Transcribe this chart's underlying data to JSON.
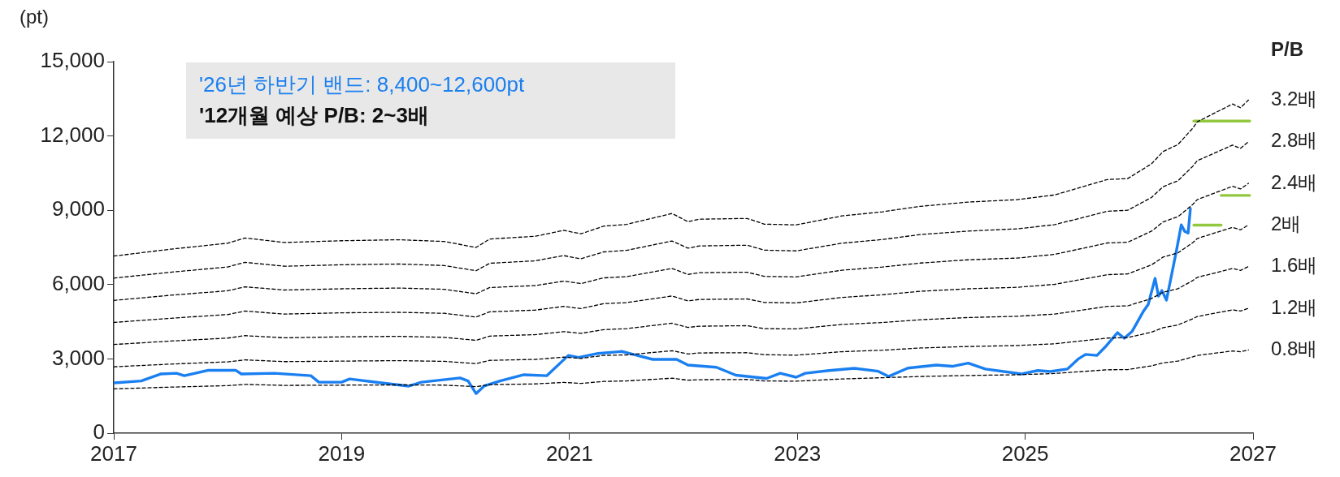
{
  "chart_data": {
    "type": "line",
    "ylabel": "(pt)",
    "legend_title": "P/B",
    "legend": false,
    "marker": "none",
    "annotations": [
      "'26년 하반기 밴드: 8,400~12,600pt",
      "'12개월 예상 P/B: 2~3배"
    ],
    "xlim": [
      2017,
      2027
    ],
    "xticks": [
      2017,
      2019,
      2021,
      2023,
      2025,
      2027
    ],
    "ylim": [
      0,
      15000
    ],
    "yticks": [
      0,
      {
        "value": 3000,
        "label": "3,000"
      },
      {
        "value": 6000,
        "label": "6,000"
      },
      {
        "value": 9000,
        "label": "9,000"
      },
      {
        "value": 12000,
        "label": "12,000"
      },
      {
        "value": 15000,
        "label": "15,000"
      }
    ],
    "x": [
      2017.0,
      2017.5,
      2018.0,
      2018.15,
      2018.5,
      2019.0,
      2019.5,
      2019.9,
      2020.18,
      2020.3,
      2020.7,
      2020.95,
      2021.1,
      2021.3,
      2021.5,
      2021.9,
      2022.04,
      2022.14,
      2022.56,
      2022.71,
      2022.99,
      2023.39,
      2023.75,
      2024.08,
      2024.5,
      2024.93,
      2025.26,
      2025.72,
      2025.9,
      2026.11,
      2026.21,
      2026.34,
      2026.47,
      2026.51,
      2026.82,
      2026.89,
      2026.96
    ],
    "series": [
      {
        "name": "3.2배",
        "color": "#000000",
        "line_style": "dashed",
        "values": [
          7150,
          7430,
          7670,
          7880,
          7700,
          7770,
          7810,
          7740,
          7500,
          7840,
          7950,
          8190,
          8050,
          8360,
          8430,
          8870,
          8540,
          8640,
          8670,
          8440,
          8410,
          8770,
          8940,
          9160,
          9330,
          9430,
          9620,
          10240,
          10280,
          10880,
          11370,
          11650,
          12310,
          12570,
          13290,
          13140,
          13450
        ]
      },
      {
        "name": "2.8배",
        "color": "#000000",
        "line_style": "dashed",
        "values": [
          6260,
          6500,
          6710,
          6900,
          6740,
          6800,
          6830,
          6770,
          6560,
          6860,
          6960,
          7170,
          7040,
          7320,
          7380,
          7760,
          7470,
          7560,
          7590,
          7390,
          7360,
          7670,
          7820,
          8020,
          8160,
          8250,
          8420,
          8960,
          9000,
          9520,
          9950,
          10190,
          10770,
          11000,
          11630,
          11500,
          11770
        ]
      },
      {
        "name": "2.4배",
        "color": "#000000",
        "line_style": "dashed",
        "values": [
          5360,
          5570,
          5750,
          5910,
          5780,
          5830,
          5860,
          5810,
          5630,
          5880,
          5960,
          6140,
          6040,
          6270,
          6320,
          6650,
          6410,
          6480,
          6500,
          6330,
          6310,
          6580,
          6710,
          6870,
          7000,
          7070,
          7220,
          7680,
          7710,
          8160,
          8530,
          8740,
          9230,
          9430,
          9970,
          9860,
          10090
        ]
      },
      {
        "name": "2배",
        "color": "#000000",
        "line_style": "dashed",
        "values": [
          4470,
          4640,
          4790,
          4930,
          4810,
          4860,
          4880,
          4840,
          4690,
          4900,
          4970,
          5120,
          5030,
          5230,
          5270,
          5540,
          5340,
          5400,
          5420,
          5280,
          5260,
          5480,
          5590,
          5730,
          5830,
          5890,
          6010,
          6400,
          6430,
          6800,
          7110,
          7280,
          7690,
          7860,
          8310,
          8210,
          8410
        ]
      },
      {
        "name": "1.6배",
        "color": "#000000",
        "line_style": "dashed",
        "values": [
          3580,
          3720,
          3840,
          3940,
          3850,
          3890,
          3910,
          3870,
          3750,
          3920,
          3980,
          4100,
          4030,
          4180,
          4220,
          4440,
          4270,
          4320,
          4340,
          4220,
          4210,
          4390,
          4470,
          4580,
          4670,
          4720,
          4810,
          5120,
          5140,
          5440,
          5690,
          5830,
          6160,
          6290,
          6650,
          6570,
          6730
        ]
      },
      {
        "name": "1.2배",
        "color": "#000000",
        "line_style": "dashed",
        "values": [
          2680,
          2790,
          2880,
          2960,
          2890,
          2910,
          2930,
          2900,
          2810,
          2940,
          2980,
          3070,
          3020,
          3140,
          3160,
          3330,
          3200,
          3240,
          3250,
          3170,
          3150,
          3290,
          3350,
          3440,
          3500,
          3540,
          3610,
          3840,
          3860,
          4080,
          4260,
          4370,
          4620,
          4710,
          4980,
          4930,
          5040
        ]
      },
      {
        "name": "0.8배",
        "color": "#000000",
        "line_style": "dashed",
        "values": [
          1790,
          1860,
          1920,
          1970,
          1930,
          1940,
          1950,
          1940,
          1880,
          1960,
          1990,
          2050,
          2010,
          2090,
          2110,
          2220,
          2140,
          2160,
          2170,
          2110,
          2100,
          2190,
          2240,
          2290,
          2330,
          2360,
          2410,
          2560,
          2570,
          2720,
          2840,
          2910,
          3080,
          3140,
          3320,
          3290,
          3360
        ]
      },
      {
        "color": "#1a7ff0",
        "x": [
          2017.0,
          2017.24,
          2017.41,
          2017.55,
          2017.62,
          2017.83,
          2018.07,
          2018.12,
          2018.41,
          2018.73,
          2018.8,
          2019.0,
          2019.07,
          2019.35,
          2019.59,
          2019.7,
          2020.04,
          2020.11,
          2020.18,
          2020.25,
          2020.39,
          2020.6,
          2020.8,
          2020.99,
          2021.08,
          2021.25,
          2021.46,
          2021.56,
          2021.73,
          2021.94,
          2022.04,
          2022.29,
          2022.46,
          2022.73,
          2022.85,
          2022.99,
          2023.07,
          2023.28,
          2023.5,
          2023.71,
          2023.8,
          2023.97,
          2024.22,
          2024.36,
          2024.5,
          2024.65,
          2024.97,
          2025.11,
          2025.22,
          2025.37,
          2025.47,
          2025.53,
          2025.63,
          2025.7,
          2025.81,
          2025.87,
          2025.94,
          2026.04,
          2026.08,
          2026.14,
          2026.17,
          2026.2,
          2026.24,
          2026.29,
          2026.33,
          2026.37,
          2026.4,
          2026.43,
          2026.45
        ],
        "values": [
          2030,
          2110,
          2390,
          2420,
          2320,
          2540,
          2540,
          2390,
          2420,
          2320,
          2060,
          2060,
          2190,
          2030,
          1900,
          2060,
          2230,
          2110,
          1600,
          1900,
          2110,
          2360,
          2320,
          3140,
          3060,
          3220,
          3300,
          3180,
          2980,
          2980,
          2750,
          2660,
          2340,
          2210,
          2420,
          2260,
          2420,
          2530,
          2620,
          2500,
          2290,
          2630,
          2750,
          2700,
          2830,
          2590,
          2390,
          2530,
          2490,
          2590,
          3010,
          3180,
          3140,
          3470,
          4060,
          3830,
          4120,
          4940,
          5200,
          6250,
          5530,
          5760,
          5370,
          6510,
          7430,
          8410,
          8150,
          8080,
          9070
        ]
      },
      {
        "color": "#92c83e",
        "x": [
          2026.48,
          2026.97
        ],
        "values": [
          12600,
          12600
        ]
      },
      {
        "color": "#92c83e",
        "x": [
          2026.72,
          2026.97
        ],
        "values": [
          9600,
          9600
        ]
      },
      {
        "color": "#92c83e",
        "x": [
          2026.48,
          2026.72
        ],
        "values": [
          8400,
          8400
        ]
      }
    ]
  }
}
